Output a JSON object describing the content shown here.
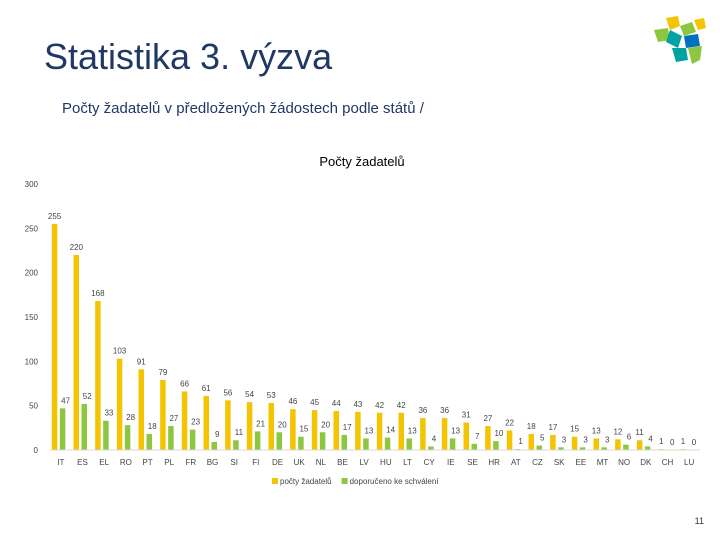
{
  "slide": {
    "title": "Statistika 3. výzva",
    "subtitle": "Počty žadatelů  v předložených žádostech podle států /",
    "page_number": "11"
  },
  "logo": {
    "icon": "puzzle-logo-icon",
    "colors": [
      "#f5c400",
      "#8dc63f",
      "#00a3a1",
      "#0071bc"
    ]
  },
  "chart_data": {
    "type": "bar",
    "title": "Počty žadatelů",
    "xlabel": "",
    "ylabel": "",
    "ylim": [
      0,
      300
    ],
    "yticks": [
      0,
      50,
      100,
      150,
      200,
      250,
      300
    ],
    "grid": false,
    "legend": "bottom",
    "categories": [
      "IT",
      "ES",
      "EL",
      "RO",
      "PT",
      "PL",
      "FR",
      "BG",
      "SI",
      "FI",
      "DE",
      "UK",
      "NL",
      "BE",
      "LV",
      "HU",
      "LT",
      "CY",
      "IE",
      "SE",
      "HR",
      "AT",
      "CZ",
      "SK",
      "EE",
      "MT",
      "NO",
      "DK",
      "CH",
      "LU"
    ],
    "series": [
      {
        "name": "počty žadatelů",
        "color": "#f5c400",
        "values": [
          255,
          220,
          168,
          103,
          91,
          79,
          66,
          61,
          56,
          54,
          53,
          46,
          45,
          44,
          43,
          42,
          42,
          36,
          36,
          31,
          27,
          22,
          18,
          17,
          15,
          13,
          12,
          11,
          1,
          1
        ]
      },
      {
        "name": "doporučeno ke schválení",
        "color": "#8dc63f",
        "values": [
          47,
          52,
          33,
          28,
          18,
          27,
          23,
          9,
          11,
          21,
          20,
          15,
          20,
          17,
          13,
          14,
          13,
          4,
          13,
          7,
          10,
          1,
          5,
          3,
          3,
          3,
          6,
          4,
          0,
          0
        ]
      }
    ]
  }
}
